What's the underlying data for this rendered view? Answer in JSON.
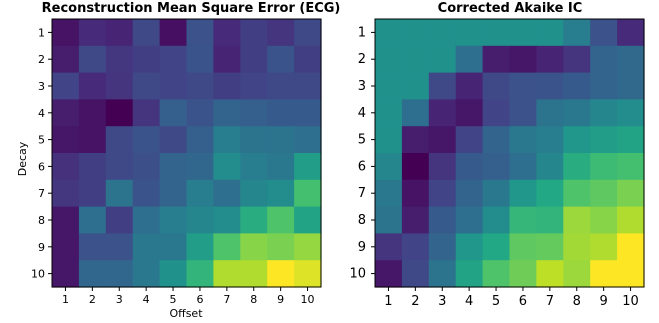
{
  "chart_data": [
    {
      "type": "heatmap",
      "title": "Reconstruction Mean Square Error (ECG)",
      "xlabel": "Offset",
      "ylabel": "Decay",
      "x": [
        1,
        2,
        3,
        4,
        5,
        6,
        7,
        8,
        9,
        10
      ],
      "y": [
        1,
        2,
        3,
        4,
        5,
        6,
        7,
        8,
        9,
        10
      ],
      "colormap": "viridis",
      "values": [
        [
          0.05,
          0.12,
          0.1,
          0.22,
          0.04,
          0.25,
          0.12,
          0.18,
          0.15,
          0.22
        ],
        [
          0.08,
          0.22,
          0.16,
          0.18,
          0.2,
          0.26,
          0.1,
          0.18,
          0.26,
          0.18
        ],
        [
          0.2,
          0.12,
          0.15,
          0.22,
          0.2,
          0.22,
          0.18,
          0.2,
          0.22,
          0.22
        ],
        [
          0.08,
          0.05,
          0.0,
          0.15,
          0.3,
          0.26,
          0.32,
          0.3,
          0.28,
          0.28
        ],
        [
          0.06,
          0.05,
          0.22,
          0.26,
          0.22,
          0.3,
          0.42,
          0.38,
          0.38,
          0.36
        ],
        [
          0.14,
          0.18,
          0.22,
          0.24,
          0.32,
          0.33,
          0.48,
          0.42,
          0.4,
          0.55
        ],
        [
          0.16,
          0.18,
          0.38,
          0.26,
          0.32,
          0.42,
          0.36,
          0.46,
          0.48,
          0.7
        ],
        [
          0.06,
          0.36,
          0.18,
          0.36,
          0.42,
          0.46,
          0.48,
          0.62,
          0.72,
          0.58
        ],
        [
          0.06,
          0.25,
          0.25,
          0.4,
          0.4,
          0.55,
          0.72,
          0.82,
          0.8,
          0.84
        ],
        [
          0.06,
          0.33,
          0.33,
          0.4,
          0.5,
          0.65,
          0.88,
          0.88,
          1.0,
          0.95
        ]
      ],
      "grid": false
    },
    {
      "type": "heatmap",
      "title": "Corrected Akaike IC",
      "xlabel": "",
      "ylabel": "",
      "x": [
        1,
        2,
        3,
        4,
        5,
        6,
        7,
        8,
        9,
        10
      ],
      "y": [
        1,
        2,
        3,
        4,
        5,
        6,
        7,
        8,
        9,
        10
      ],
      "colormap": "viridis",
      "values": [
        [
          0.5,
          0.5,
          0.5,
          0.5,
          0.5,
          0.5,
          0.5,
          0.42,
          0.25,
          0.12
        ],
        [
          0.5,
          0.5,
          0.5,
          0.36,
          0.08,
          0.06,
          0.1,
          0.15,
          0.32,
          0.34
        ],
        [
          0.5,
          0.5,
          0.22,
          0.1,
          0.22,
          0.25,
          0.26,
          0.28,
          0.32,
          0.34
        ],
        [
          0.5,
          0.36,
          0.1,
          0.06,
          0.2,
          0.25,
          0.38,
          0.4,
          0.46,
          0.48
        ],
        [
          0.5,
          0.08,
          0.06,
          0.2,
          0.32,
          0.4,
          0.42,
          0.52,
          0.55,
          0.58
        ],
        [
          0.46,
          0.0,
          0.15,
          0.28,
          0.3,
          0.36,
          0.46,
          0.62,
          0.68,
          0.7
        ],
        [
          0.4,
          0.05,
          0.2,
          0.32,
          0.4,
          0.52,
          0.6,
          0.72,
          0.75,
          0.8
        ],
        [
          0.38,
          0.08,
          0.28,
          0.36,
          0.48,
          0.66,
          0.65,
          0.85,
          0.82,
          0.88
        ],
        [
          0.15,
          0.2,
          0.32,
          0.52,
          0.6,
          0.75,
          0.76,
          0.86,
          0.88,
          1.0
        ],
        [
          0.06,
          0.22,
          0.38,
          0.58,
          0.72,
          0.78,
          0.9,
          0.85,
          1.0,
          1.0
        ]
      ],
      "grid": false
    }
  ]
}
